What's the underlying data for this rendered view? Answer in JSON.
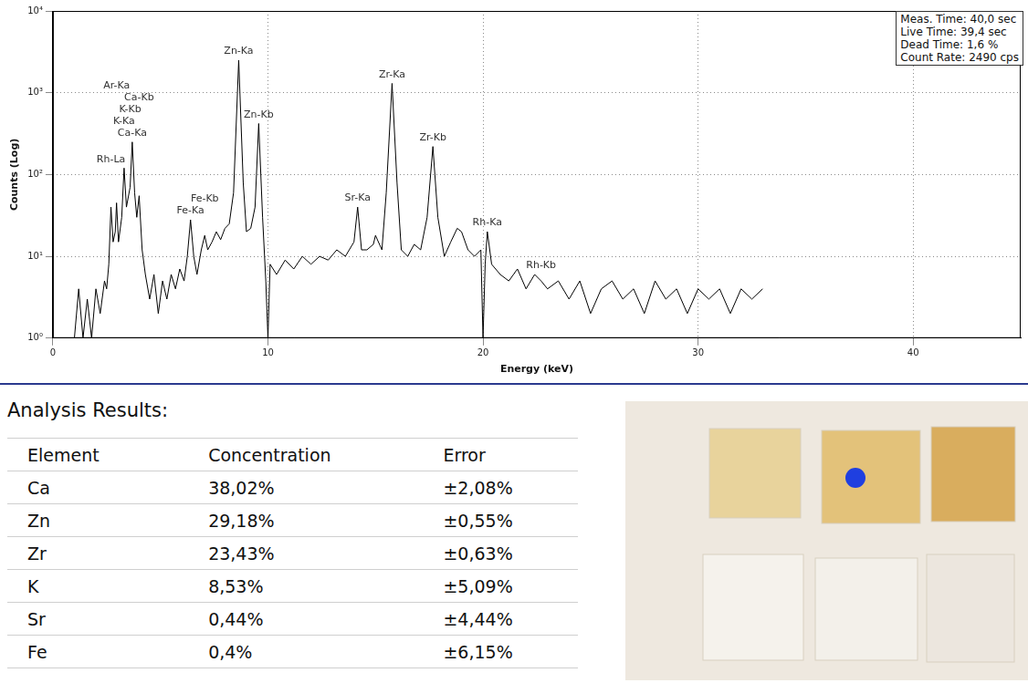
{
  "chart_data": {
    "type": "line",
    "x_label": "Energy (keV)",
    "y_label": "Counts (Log)",
    "log": "y",
    "grid": true,
    "color": "#000000",
    "xlim": [
      0,
      45
    ],
    "xticks": [
      0,
      10,
      20,
      30,
      40
    ],
    "ylim": [
      1,
      10000
    ],
    "yticks": [
      {
        "value": 1,
        "label": "10⁰"
      },
      {
        "value": 10,
        "label": "10¹"
      },
      {
        "value": 100,
        "label": "10²"
      },
      {
        "value": 1000,
        "label": "10³"
      },
      {
        "value": 10000,
        "label": "10⁴"
      }
    ],
    "x": [
      1.0,
      1.2,
      1.4,
      1.6,
      1.8,
      2.0,
      2.2,
      2.4,
      2.5,
      2.6,
      2.7,
      2.8,
      2.9,
      2.96,
      3.05,
      3.2,
      3.31,
      3.42,
      3.59,
      3.69,
      3.8,
      3.9,
      4.01,
      4.15,
      4.3,
      4.5,
      4.7,
      4.9,
      5.1,
      5.3,
      5.5,
      5.7,
      5.9,
      6.1,
      6.25,
      6.4,
      6.55,
      6.7,
      6.9,
      7.06,
      7.2,
      7.4,
      7.6,
      7.8,
      8.0,
      8.2,
      8.4,
      8.64,
      8.85,
      9.0,
      9.2,
      9.4,
      9.57,
      9.75,
      9.9,
      10.0,
      10.1,
      10.4,
      10.8,
      11.2,
      11.6,
      12.0,
      12.4,
      12.8,
      13.2,
      13.6,
      14.0,
      14.17,
      14.35,
      14.6,
      14.9,
      15.0,
      15.3,
      15.5,
      15.77,
      16.0,
      16.2,
      16.5,
      16.8,
      17.1,
      17.4,
      17.67,
      17.9,
      18.2,
      18.5,
      18.8,
      19.0,
      19.3,
      19.6,
      19.9,
      20.0,
      20.1,
      20.2,
      20.4,
      20.8,
      21.2,
      21.6,
      22.0,
      22.4,
      22.7,
      23.0,
      23.5,
      24.0,
      24.5,
      25.0,
      25.5,
      26.0,
      26.5,
      27.0,
      27.5,
      28.0,
      28.5,
      29.0,
      29.5,
      30.0,
      30.5,
      31.0,
      31.5,
      32.0,
      32.5,
      33.0
    ],
    "values": [
      1,
      4,
      1,
      3,
      1,
      4,
      2,
      5,
      4,
      8,
      40,
      15,
      20,
      45,
      15,
      30,
      120,
      40,
      70,
      250,
      60,
      30,
      55,
      12,
      6,
      3,
      6,
      2,
      5,
      3,
      6,
      4,
      7,
      5,
      10,
      28,
      10,
      6,
      12,
      18,
      12,
      15,
      20,
      16,
      22,
      25,
      60,
      2500,
      80,
      20,
      22,
      40,
      420,
      30,
      5,
      1,
      8,
      6,
      9,
      7,
      10,
      8,
      10,
      9,
      12,
      10,
      15,
      40,
      12,
      12,
      14,
      18,
      12,
      60,
      1300,
      80,
      12,
      10,
      14,
      12,
      30,
      220,
      30,
      10,
      15,
      22,
      20,
      12,
      10,
      12,
      1,
      8,
      20,
      8,
      6,
      5,
      7,
      4,
      6,
      5,
      4,
      5,
      3,
      5,
      2,
      4,
      5,
      3,
      4,
      2,
      5,
      3,
      4,
      2,
      4,
      3,
      4,
      2,
      4,
      3,
      4
    ],
    "annotations": [
      {
        "text": "Ca-Ka",
        "x": 3.69
      },
      {
        "text": "K-Ka",
        "x": 3.31
      },
      {
        "text": "K-Kb",
        "x": 3.59
      },
      {
        "text": "Ca-Kb",
        "x": 4.01
      },
      {
        "text": "Ar-Ka",
        "x": 2.96
      },
      {
        "text": "Rh-La",
        "x": 2.7
      },
      {
        "text": "Fe-Ka",
        "x": 6.4
      },
      {
        "text": "Fe-Kb",
        "x": 7.06
      },
      {
        "text": "Zn-Ka",
        "x": 8.64
      },
      {
        "text": "Zn-Kb",
        "x": 9.57
      },
      {
        "text": "Sr-Ka",
        "x": 14.17
      },
      {
        "text": "Zr-Ka",
        "x": 15.77
      },
      {
        "text": "Zr-Kb",
        "x": 17.67
      },
      {
        "text": "Rh-Ka",
        "x": 20.2
      },
      {
        "text": "Rh-Kb",
        "x": 22.7
      }
    ]
  },
  "measurement_info": [
    "Meas. Time: 40,0 sec",
    "Live Time: 39,4 sec",
    "Dead Time: 1,6 %",
    "Count Rate: 2490 cps"
  ],
  "analysis_results": {
    "title": "Analysis Results:",
    "table": {
      "header": [
        "Element",
        "Concentration",
        "Error"
      ],
      "rows": [
        [
          "Ca",
          "38,02%",
          "±2,08%"
        ],
        [
          "Zn",
          "29,18%",
          "±0,55%"
        ],
        [
          "Zr",
          "23,43%",
          "±0,63%"
        ],
        [
          "K",
          "8,53%",
          "±5,09%"
        ],
        [
          "Sr",
          "0,44%",
          "±4,44%"
        ],
        [
          "Fe",
          "0,4%",
          "±6,15%"
        ]
      ]
    }
  }
}
